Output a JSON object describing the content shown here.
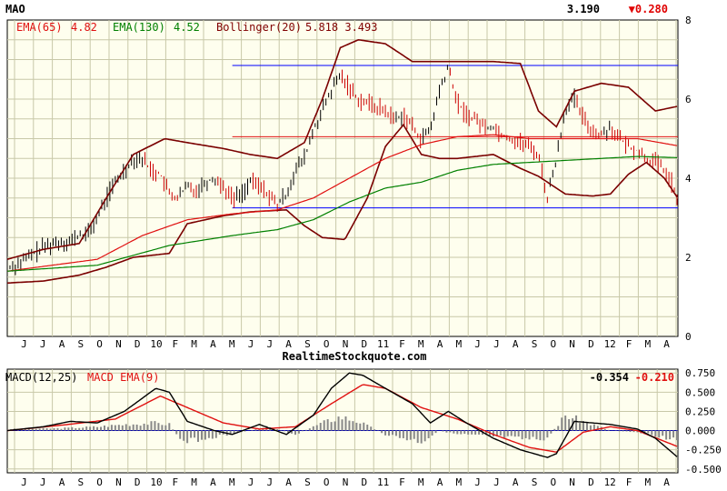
{
  "chart_data": [
    {
      "type": "line",
      "ticker": "MAO",
      "last_price": "3.190",
      "change": "▼0.280",
      "indicators": [
        {
          "label": "EMA(65)",
          "value": "4.82",
          "color": "#e01010"
        },
        {
          "label": "EMA(130)",
          "value": "4.52",
          "color": "#008000"
        },
        {
          "label": "Bollinger(20)",
          "value": "5.818 3.493",
          "color": "#800000"
        }
      ],
      "watermark": "RealtimeStockquote.com",
      "x_labels": [
        "J",
        "J",
        "A",
        "S",
        "O",
        "N",
        "D",
        "10",
        "F",
        "M",
        "A",
        "M",
        "J",
        "J",
        "A",
        "S",
        "O",
        "N",
        "D",
        "11",
        "F",
        "M",
        "A",
        "M",
        "J",
        "J",
        "A",
        "S",
        "O",
        "N",
        "D",
        "12",
        "F",
        "M",
        "A"
      ],
      "ylim": [
        0,
        8
      ],
      "yticks": [
        "0",
        "2",
        "4",
        "6",
        "8"
      ],
      "horizontal_lines": [
        {
          "y": 6.85,
          "from_index": 250,
          "color": "#0000ff"
        },
        {
          "y": 5.05,
          "from_index": 250,
          "color": "#e01010"
        },
        {
          "y": 3.25,
          "from_index": 250,
          "color": "#0000ff"
        }
      ],
      "price_anchors": [
        [
          0,
          1.75
        ],
        [
          10,
          1.8
        ],
        [
          20,
          1.95
        ],
        [
          30,
          2.1
        ],
        [
          40,
          2.25
        ],
        [
          50,
          2.35
        ],
        [
          60,
          2.4
        ],
        [
          70,
          2.4
        ],
        [
          80,
          2.55
        ],
        [
          90,
          2.6
        ],
        [
          100,
          3.0
        ],
        [
          110,
          3.5
        ],
        [
          120,
          3.9
        ],
        [
          130,
          4.2
        ],
        [
          140,
          4.5
        ],
        [
          150,
          4.5
        ],
        [
          160,
          4.2
        ],
        [
          170,
          4.1
        ],
        [
          180,
          3.6
        ],
        [
          190,
          3.5
        ],
        [
          200,
          3.8
        ],
        [
          210,
          3.7
        ],
        [
          220,
          3.9
        ],
        [
          230,
          4.0
        ],
        [
          240,
          3.8
        ],
        [
          250,
          3.5
        ],
        [
          260,
          3.6
        ],
        [
          270,
          3.9
        ],
        [
          280,
          3.8
        ],
        [
          290,
          3.6
        ],
        [
          300,
          3.3
        ],
        [
          310,
          3.6
        ],
        [
          320,
          4.2
        ],
        [
          330,
          4.5
        ],
        [
          340,
          5.2
        ],
        [
          350,
          5.7
        ],
        [
          360,
          6.2
        ],
        [
          370,
          6.6
        ],
        [
          380,
          6.3
        ],
        [
          390,
          6.0
        ],
        [
          400,
          5.9
        ],
        [
          410,
          5.8
        ],
        [
          420,
          5.7
        ],
        [
          430,
          5.5
        ],
        [
          440,
          5.6
        ],
        [
          450,
          5.3
        ],
        [
          460,
          5.0
        ],
        [
          470,
          5.2
        ],
        [
          480,
          6.2
        ],
        [
          490,
          6.8
        ],
        [
          500,
          5.9
        ],
        [
          510,
          5.6
        ],
        [
          520,
          5.5
        ],
        [
          530,
          5.3
        ],
        [
          540,
          5.3
        ],
        [
          550,
          5.1
        ],
        [
          560,
          5.0
        ],
        [
          570,
          4.9
        ],
        [
          580,
          4.8
        ],
        [
          590,
          4.6
        ],
        [
          600,
          3.5
        ],
        [
          610,
          4.5
        ],
        [
          620,
          5.8
        ],
        [
          630,
          6.0
        ],
        [
          640,
          5.5
        ],
        [
          650,
          5.2
        ],
        [
          660,
          5.1
        ],
        [
          670,
          5.3
        ],
        [
          680,
          5.0
        ],
        [
          690,
          4.8
        ],
        [
          700,
          4.7
        ],
        [
          710,
          4.5
        ],
        [
          720,
          4.4
        ],
        [
          730,
          4.2
        ],
        [
          740,
          3.8
        ],
        [
          745,
          3.3
        ]
      ],
      "ema65_anchors": [
        [
          0,
          1.65
        ],
        [
          100,
          1.95
        ],
        [
          150,
          2.55
        ],
        [
          200,
          2.95
        ],
        [
          250,
          3.1
        ],
        [
          300,
          3.2
        ],
        [
          340,
          3.5
        ],
        [
          380,
          4.0
        ],
        [
          420,
          4.5
        ],
        [
          460,
          4.85
        ],
        [
          500,
          5.05
        ],
        [
          540,
          5.1
        ],
        [
          580,
          5.0
        ],
        [
          620,
          5.0
        ],
        [
          660,
          5.0
        ],
        [
          700,
          5.0
        ],
        [
          745,
          4.82
        ]
      ],
      "ema130_anchors": [
        [
          0,
          1.65
        ],
        [
          100,
          1.8
        ],
        [
          180,
          2.3
        ],
        [
          250,
          2.55
        ],
        [
          300,
          2.7
        ],
        [
          340,
          2.95
        ],
        [
          380,
          3.4
        ],
        [
          420,
          3.75
        ],
        [
          460,
          3.9
        ],
        [
          500,
          4.2
        ],
        [
          540,
          4.35
        ],
        [
          580,
          4.4
        ],
        [
          620,
          4.45
        ],
        [
          660,
          4.5
        ],
        [
          700,
          4.55
        ],
        [
          745,
          4.52
        ]
      ],
      "boll_upper_anchors": [
        [
          0,
          1.95
        ],
        [
          40,
          2.2
        ],
        [
          80,
          2.35
        ],
        [
          110,
          3.5
        ],
        [
          140,
          4.6
        ],
        [
          175,
          5.0
        ],
        [
          200,
          4.9
        ],
        [
          240,
          4.75
        ],
        [
          270,
          4.6
        ],
        [
          300,
          4.5
        ],
        [
          330,
          4.9
        ],
        [
          350,
          6.0
        ],
        [
          370,
          7.3
        ],
        [
          390,
          7.5
        ],
        [
          420,
          7.4
        ],
        [
          450,
          6.95
        ],
        [
          490,
          6.95
        ],
        [
          540,
          6.95
        ],
        [
          570,
          6.9
        ],
        [
          590,
          5.7
        ],
        [
          610,
          5.3
        ],
        [
          630,
          6.2
        ],
        [
          660,
          6.4
        ],
        [
          690,
          6.3
        ],
        [
          720,
          5.7
        ],
        [
          745,
          5.82
        ]
      ],
      "boll_lower_anchors": [
        [
          0,
          1.35
        ],
        [
          40,
          1.4
        ],
        [
          80,
          1.55
        ],
        [
          110,
          1.75
        ],
        [
          140,
          2.0
        ],
        [
          180,
          2.1
        ],
        [
          200,
          2.85
        ],
        [
          240,
          3.05
        ],
        [
          270,
          3.15
        ],
        [
          310,
          3.2
        ],
        [
          330,
          2.8
        ],
        [
          350,
          2.5
        ],
        [
          375,
          2.45
        ],
        [
          400,
          3.5
        ],
        [
          420,
          4.8
        ],
        [
          440,
          5.35
        ],
        [
          460,
          4.6
        ],
        [
          480,
          4.5
        ],
        [
          500,
          4.5
        ],
        [
          540,
          4.6
        ],
        [
          570,
          4.25
        ],
        [
          590,
          4.05
        ],
        [
          620,
          3.6
        ],
        [
          650,
          3.55
        ],
        [
          670,
          3.6
        ],
        [
          690,
          4.1
        ],
        [
          710,
          4.4
        ],
        [
          730,
          4.0
        ],
        [
          745,
          3.49
        ]
      ],
      "bar_noise": 0.28
    },
    {
      "type": "line",
      "label_macd": "MACD(12,25)",
      "label_signal": "MACD EMA(9)",
      "macd_value": "-0.354",
      "signal_value": "-0.210",
      "ylim": [
        -0.55,
        0.8
      ],
      "yticks": [
        "0.750",
        "0.500",
        "0.250",
        "0.000",
        "-0.250",
        "-0.500"
      ],
      "x_labels": [
        "J",
        "J",
        "A",
        "S",
        "O",
        "N",
        "D",
        "10",
        "F",
        "M",
        "A",
        "M",
        "J",
        "J",
        "A",
        "S",
        "O",
        "N",
        "D",
        "11",
        "F",
        "M",
        "A",
        "M",
        "J",
        "J",
        "A",
        "S",
        "O",
        "N",
        "D",
        "12",
        "F",
        "M",
        "A"
      ],
      "macd_anchors": [
        [
          0,
          0.0
        ],
        [
          40,
          0.05
        ],
        [
          70,
          0.12
        ],
        [
          100,
          0.1
        ],
        [
          130,
          0.25
        ],
        [
          165,
          0.55
        ],
        [
          180,
          0.5
        ],
        [
          200,
          0.12
        ],
        [
          230,
          0.0
        ],
        [
          250,
          -0.05
        ],
        [
          280,
          0.08
        ],
        [
          310,
          -0.05
        ],
        [
          340,
          0.2
        ],
        [
          360,
          0.55
        ],
        [
          380,
          0.75
        ],
        [
          395,
          0.72
        ],
        [
          420,
          0.55
        ],
        [
          450,
          0.35
        ],
        [
          470,
          0.1
        ],
        [
          490,
          0.25
        ],
        [
          510,
          0.1
        ],
        [
          540,
          -0.1
        ],
        [
          570,
          -0.25
        ],
        [
          600,
          -0.35
        ],
        [
          610,
          -0.3
        ],
        [
          630,
          0.12
        ],
        [
          650,
          0.1
        ],
        [
          670,
          0.08
        ],
        [
          700,
          0.02
        ],
        [
          720,
          -0.1
        ],
        [
          745,
          -0.35
        ]
      ],
      "signal_anchors": [
        [
          0,
          0.0
        ],
        [
          60,
          0.07
        ],
        [
          120,
          0.15
        ],
        [
          170,
          0.45
        ],
        [
          200,
          0.3
        ],
        [
          240,
          0.1
        ],
        [
          280,
          0.02
        ],
        [
          320,
          0.05
        ],
        [
          360,
          0.35
        ],
        [
          395,
          0.6
        ],
        [
          420,
          0.55
        ],
        [
          460,
          0.3
        ],
        [
          500,
          0.15
        ],
        [
          540,
          -0.05
        ],
        [
          580,
          -0.22
        ],
        [
          610,
          -0.28
        ],
        [
          640,
          -0.02
        ],
        [
          670,
          0.05
        ],
        [
          700,
          0.0
        ],
        [
          745,
          -0.21
        ]
      ],
      "hist_anchors": [
        [
          0,
          0.02
        ],
        [
          60,
          0.03
        ],
        [
          100,
          0.05
        ],
        [
          130,
          0.08
        ],
        [
          165,
          0.1
        ],
        [
          180,
          0.08
        ],
        [
          195,
          -0.15
        ],
        [
          230,
          -0.08
        ],
        [
          260,
          -0.02
        ],
        [
          290,
          0.05
        ],
        [
          320,
          -0.05
        ],
        [
          350,
          0.1
        ],
        [
          370,
          0.18
        ],
        [
          390,
          0.12
        ],
        [
          420,
          -0.05
        ],
        [
          460,
          -0.15
        ],
        [
          480,
          0.0
        ],
        [
          500,
          -0.05
        ],
        [
          540,
          -0.08
        ],
        [
          580,
          -0.12
        ],
        [
          600,
          -0.1
        ],
        [
          620,
          0.2
        ],
        [
          640,
          0.12
        ],
        [
          670,
          0.0
        ],
        [
          700,
          -0.02
        ],
        [
          745,
          -0.12
        ]
      ]
    }
  ]
}
